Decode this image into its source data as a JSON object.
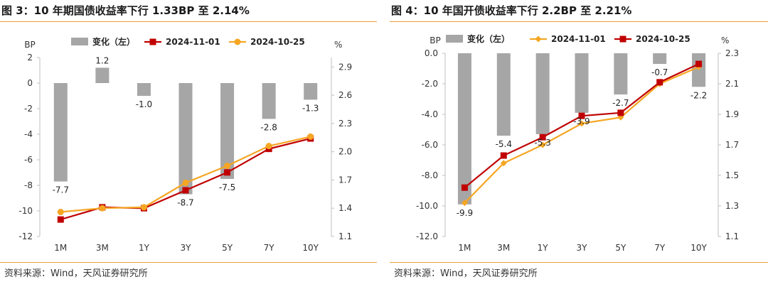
{
  "panels": [
    {
      "title": "图 3：10 年期国债收益率下行 1.33BP 至 2.14%",
      "source": "资料来源：Wind，天风证券研究所"
    },
    {
      "title": "图 4：10 年国开债收益率下行 2.2BP 至 2.21%",
      "source": "资料来源：Wind，天风证券研究所"
    }
  ],
  "chart_data": [
    {
      "type": "bar",
      "categories": [
        "1M",
        "3M",
        "1Y",
        "3Y",
        "5Y",
        "7Y",
        "10Y"
      ],
      "left_axis_label": "BP",
      "right_axis_label": "%",
      "ylim_left": [
        -12,
        2
      ],
      "yticks_left": [
        "-12",
        "-10",
        "-8",
        "-6",
        "-4",
        "-2",
        "0",
        "2"
      ],
      "ylim_right": [
        1.1,
        3.0
      ],
      "yticks_right": [
        "1.1",
        "1.4",
        "1.7",
        "2.0",
        "2.3",
        "2.6",
        "2.9"
      ],
      "grid": false,
      "legend_position": "top",
      "series": [
        {
          "name": "变化（左）",
          "kind": "bar",
          "axis": "left",
          "color": "#a6a6a6",
          "values": [
            -7.7,
            1.2,
            -1.0,
            -8.7,
            -7.5,
            -2.8,
            -1.3
          ],
          "labels": [
            "-7.7",
            "1.2",
            "-1.0",
            "-8.7",
            "-7.5",
            "-2.8",
            "-1.3"
          ]
        },
        {
          "name": "2024-11-01",
          "kind": "line",
          "axis": "right",
          "color": "#c00000",
          "marker": "square",
          "values": [
            1.28,
            1.41,
            1.4,
            1.59,
            1.78,
            2.03,
            2.14
          ]
        },
        {
          "name": "2024-10-25",
          "kind": "line",
          "axis": "right",
          "color": "#f5a623",
          "marker": "circle",
          "values": [
            1.36,
            1.4,
            1.41,
            1.67,
            1.85,
            2.06,
            2.16
          ]
        }
      ]
    },
    {
      "type": "bar",
      "categories": [
        "1M",
        "3M",
        "1Y",
        "3Y",
        "5Y",
        "7Y",
        "10Y"
      ],
      "left_axis_label": "BP",
      "right_axis_label": "%",
      "ylim_left": [
        -12,
        0
      ],
      "yticks_left": [
        "-12.0",
        "-10.0",
        "-8.0",
        "-6.0",
        "-4.0",
        "-2.0",
        "0.0"
      ],
      "ylim_right": [
        1.1,
        2.3
      ],
      "yticks_right": [
        "1.1",
        "1.3",
        "1.5",
        "1.7",
        "1.9",
        "2.1",
        "2.3"
      ],
      "grid": false,
      "legend_position": "top",
      "series": [
        {
          "name": "变化（左）",
          "kind": "bar",
          "axis": "left",
          "color": "#a6a6a6",
          "values": [
            -9.9,
            -5.4,
            -5.3,
            -3.9,
            -2.7,
            -0.7,
            -2.2
          ],
          "labels": [
            "-9.9",
            "-5.4",
            "-5.3",
            "-3.9",
            "-2.7",
            "-0.7",
            "-2.2"
          ]
        },
        {
          "name": "2024-11-01",
          "kind": "line",
          "axis": "right",
          "color": "#f5a623",
          "marker": "diamond",
          "values": [
            1.32,
            1.58,
            1.7,
            1.84,
            1.88,
            2.1,
            2.21
          ]
        },
        {
          "name": "2024-10-25",
          "kind": "line",
          "axis": "right",
          "color": "#c00000",
          "marker": "square",
          "values": [
            1.42,
            1.63,
            1.75,
            1.89,
            1.91,
            2.11,
            2.23
          ]
        }
      ]
    }
  ]
}
